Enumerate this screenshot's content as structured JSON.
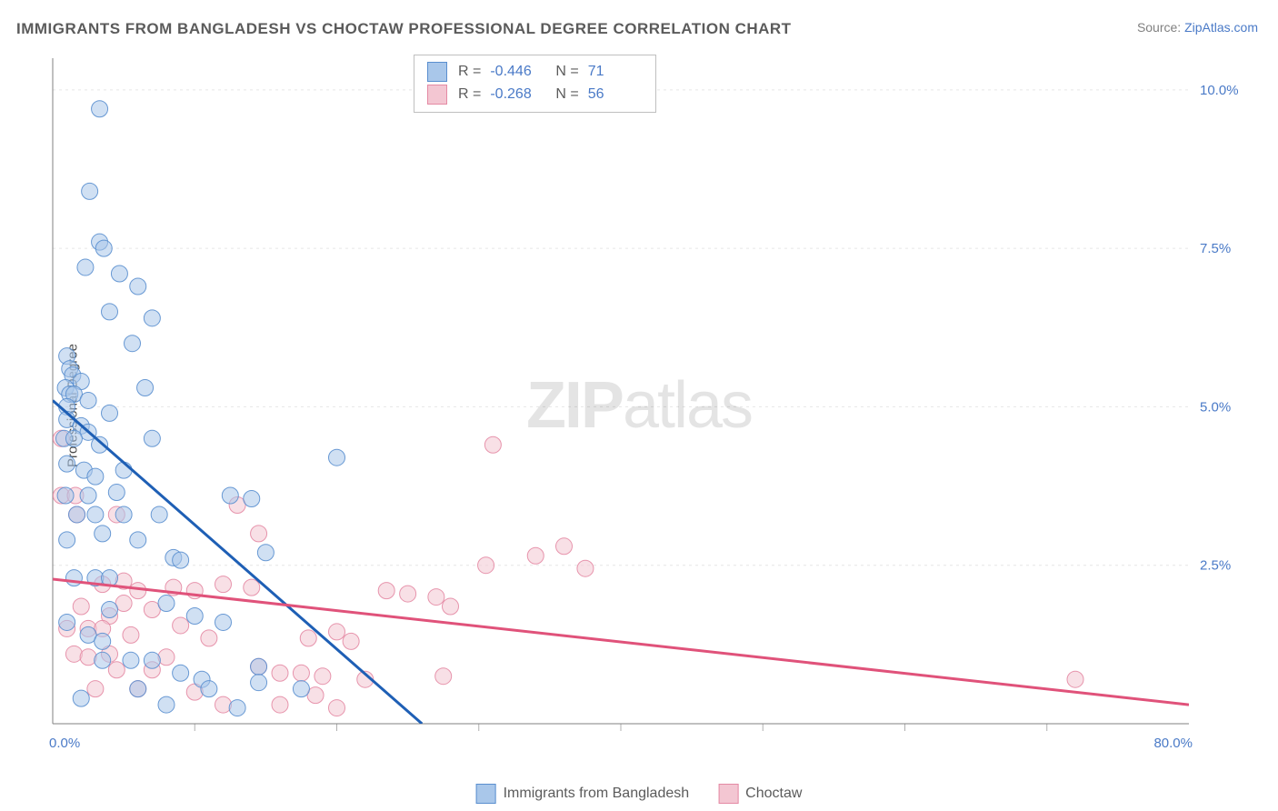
{
  "title": "IMMIGRANTS FROM BANGLADESH VS CHOCTAW PROFESSIONAL DEGREE CORRELATION CHART",
  "source_prefix": "Source: ",
  "source_link": "ZipAtlas.com",
  "watermark_a": "ZIP",
  "watermark_b": "atlas",
  "chart": {
    "type": "scatter",
    "ylabel": "Professional Degree",
    "xlim": [
      0,
      80
    ],
    "ylim": [
      0,
      10.5
    ],
    "x_ticks": [
      0,
      80
    ],
    "x_tick_labels": [
      "0.0%",
      "80.0%"
    ],
    "x_minor_ticks": [
      10,
      20,
      30,
      40,
      50,
      60,
      70
    ],
    "y_ticks": [
      2.5,
      5.0,
      7.5,
      10.0
    ],
    "y_tick_labels": [
      "2.5%",
      "5.0%",
      "7.5%",
      "10.0%"
    ],
    "background_color": "#ffffff",
    "grid_color": "#e6e6e6",
    "axis_color": "#808080",
    "tick_mark_color": "#b0b0b0",
    "title_color": "#5b5b5b",
    "tick_label_color": "#4a7ac7",
    "marker_opacity": 0.55,
    "marker_radius": 9
  },
  "series": [
    {
      "name": "Immigrants from Bangladesh",
      "color_fill": "#a9c7ea",
      "color_stroke": "#5a8fcf",
      "line_color": "#1e5fb5",
      "line_width": 3,
      "R": "-0.446",
      "N": "71",
      "trend": {
        "x1": 0,
        "y1": 5.1,
        "x2": 26,
        "y2": 0
      },
      "points": [
        [
          3.3,
          9.7
        ],
        [
          2.6,
          8.4
        ],
        [
          3.3,
          7.6
        ],
        [
          3.6,
          7.5
        ],
        [
          2.3,
          7.2
        ],
        [
          4.7,
          7.1
        ],
        [
          6.0,
          6.9
        ],
        [
          4.0,
          6.5
        ],
        [
          7.0,
          6.4
        ],
        [
          5.6,
          6.0
        ],
        [
          1.0,
          5.8
        ],
        [
          1.2,
          5.6
        ],
        [
          1.4,
          5.5
        ],
        [
          0.9,
          5.3
        ],
        [
          2.0,
          5.4
        ],
        [
          1.2,
          5.2
        ],
        [
          1.5,
          5.2
        ],
        [
          1.0,
          5.0
        ],
        [
          2.5,
          5.1
        ],
        [
          6.5,
          5.3
        ],
        [
          1.0,
          4.8
        ],
        [
          2.0,
          4.7
        ],
        [
          2.5,
          4.6
        ],
        [
          4.0,
          4.9
        ],
        [
          0.8,
          4.5
        ],
        [
          1.5,
          4.5
        ],
        [
          3.3,
          4.4
        ],
        [
          7.0,
          4.5
        ],
        [
          20.0,
          4.2
        ],
        [
          1.0,
          4.1
        ],
        [
          2.2,
          4.0
        ],
        [
          3.0,
          3.9
        ],
        [
          5.0,
          4.0
        ],
        [
          0.9,
          3.6
        ],
        [
          2.5,
          3.6
        ],
        [
          4.5,
          3.65
        ],
        [
          12.5,
          3.6
        ],
        [
          14.0,
          3.55
        ],
        [
          1.7,
          3.3
        ],
        [
          3.0,
          3.3
        ],
        [
          5.0,
          3.3
        ],
        [
          7.5,
          3.3
        ],
        [
          1.0,
          2.9
        ],
        [
          3.5,
          3.0
        ],
        [
          6.0,
          2.9
        ],
        [
          15.0,
          2.7
        ],
        [
          8.5,
          2.62
        ],
        [
          9.0,
          2.58
        ],
        [
          1.5,
          2.3
        ],
        [
          3.0,
          2.3
        ],
        [
          4.0,
          2.3
        ],
        [
          4.0,
          1.8
        ],
        [
          8.0,
          1.9
        ],
        [
          10.0,
          1.7
        ],
        [
          12.0,
          1.6
        ],
        [
          1.0,
          1.6
        ],
        [
          2.5,
          1.4
        ],
        [
          3.5,
          1.3
        ],
        [
          3.5,
          1.0
        ],
        [
          5.5,
          1.0
        ],
        [
          7.0,
          1.0
        ],
        [
          14.5,
          0.9
        ],
        [
          9.0,
          0.8
        ],
        [
          10.5,
          0.7
        ],
        [
          14.5,
          0.65
        ],
        [
          6.0,
          0.55
        ],
        [
          11.0,
          0.55
        ],
        [
          17.5,
          0.55
        ],
        [
          2.0,
          0.4
        ],
        [
          8.0,
          0.3
        ],
        [
          13.0,
          0.25
        ]
      ]
    },
    {
      "name": "Choctaw",
      "color_fill": "#f3c6d2",
      "color_stroke": "#e48aa4",
      "line_color": "#e0527a",
      "line_width": 3,
      "R": "-0.268",
      "N": "56",
      "trend": {
        "x1": 0,
        "y1": 2.28,
        "x2": 80,
        "y2": 0.3
      },
      "points": [
        [
          0.6,
          4.5
        ],
        [
          31.0,
          4.4
        ],
        [
          0.6,
          3.6
        ],
        [
          1.6,
          3.6
        ],
        [
          1.7,
          3.3
        ],
        [
          4.5,
          3.3
        ],
        [
          13.0,
          3.45
        ],
        [
          14.5,
          3.0
        ],
        [
          34.0,
          2.65
        ],
        [
          36.0,
          2.8
        ],
        [
          30.5,
          2.5
        ],
        [
          37.5,
          2.45
        ],
        [
          3.5,
          2.2
        ],
        [
          5.0,
          2.25
        ],
        [
          6.0,
          2.1
        ],
        [
          8.5,
          2.15
        ],
        [
          10.0,
          2.1
        ],
        [
          12.0,
          2.2
        ],
        [
          14.0,
          2.15
        ],
        [
          23.5,
          2.1
        ],
        [
          25.0,
          2.05
        ],
        [
          27.0,
          2.0
        ],
        [
          2.0,
          1.85
        ],
        [
          4.0,
          1.7
        ],
        [
          5.0,
          1.9
        ],
        [
          7.0,
          1.8
        ],
        [
          28.0,
          1.85
        ],
        [
          1.0,
          1.5
        ],
        [
          2.5,
          1.5
        ],
        [
          3.5,
          1.5
        ],
        [
          5.5,
          1.4
        ],
        [
          9.0,
          1.55
        ],
        [
          11.0,
          1.35
        ],
        [
          18.0,
          1.35
        ],
        [
          20.0,
          1.45
        ],
        [
          21.0,
          1.3
        ],
        [
          1.5,
          1.1
        ],
        [
          2.5,
          1.05
        ],
        [
          4.0,
          1.1
        ],
        [
          8.0,
          1.05
        ],
        [
          4.5,
          0.85
        ],
        [
          7.0,
          0.85
        ],
        [
          14.5,
          0.9
        ],
        [
          16.0,
          0.8
        ],
        [
          17.5,
          0.8
        ],
        [
          19.0,
          0.75
        ],
        [
          22.0,
          0.7
        ],
        [
          27.5,
          0.75
        ],
        [
          3.0,
          0.55
        ],
        [
          6.0,
          0.55
        ],
        [
          10.0,
          0.5
        ],
        [
          18.5,
          0.45
        ],
        [
          12.0,
          0.3
        ],
        [
          16.0,
          0.3
        ],
        [
          20.0,
          0.25
        ],
        [
          72.0,
          0.7
        ]
      ]
    }
  ],
  "legend": {
    "stats_labels": {
      "R": "R =",
      "N": "N ="
    },
    "bottom": [
      {
        "label": "Immigrants from Bangladesh",
        "fill": "#a9c7ea",
        "stroke": "#5a8fcf"
      },
      {
        "label": "Choctaw",
        "fill": "#f3c6d2",
        "stroke": "#e48aa4"
      }
    ]
  }
}
